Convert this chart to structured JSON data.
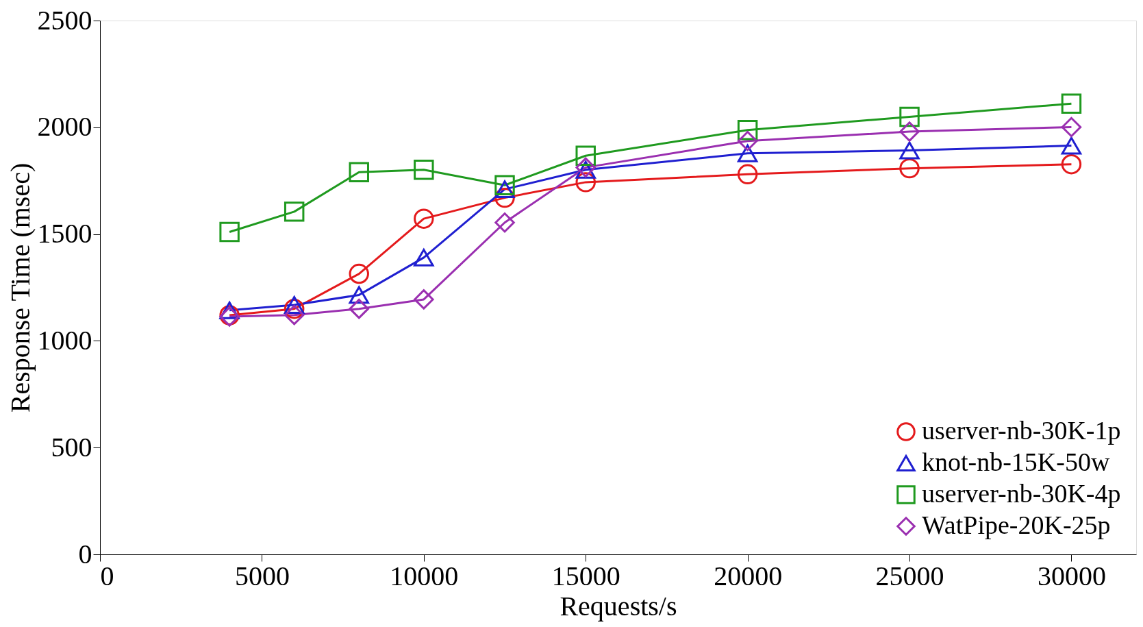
{
  "chart_data": {
    "type": "line",
    "xlabel": "Requests/s",
    "ylabel": "Response Time (msec)",
    "x": [
      4000,
      6000,
      8000,
      10000,
      12500,
      15000,
      20000,
      25000,
      30000
    ],
    "series": [
      {
        "name": "userver-nb-30K-1p",
        "color": "#e41a1c",
        "marker": "circle",
        "values": [
          1120,
          1150,
          1314,
          1572,
          1670,
          1743,
          1780,
          1808,
          1827
        ]
      },
      {
        "name": "knot-nb-15K-50w",
        "color": "#1f1fd0",
        "marker": "triangle",
        "values": [
          1143,
          1168,
          1215,
          1390,
          1710,
          1801,
          1878,
          1892,
          1914
        ]
      },
      {
        "name": "userver-nb-30K-4p",
        "color": "#1f9a1f",
        "marker": "square",
        "values": [
          1510,
          1605,
          1790,
          1801,
          1729,
          1867,
          1987,
          2049,
          2111
        ]
      },
      {
        "name": "WatPipe-20K-25p",
        "color": "#9a2fb0",
        "marker": "diamond",
        "values": [
          1114,
          1121,
          1150,
          1194,
          1554,
          1812,
          1936,
          1980,
          2001
        ]
      }
    ],
    "xlim": [
      0,
      32000
    ],
    "xticks": [
      0,
      5000,
      10000,
      15000,
      20000,
      25000,
      30000
    ],
    "ylim": [
      0,
      2500
    ],
    "yticks": [
      0,
      500,
      1000,
      1500,
      2000,
      2500
    ],
    "grid": false,
    "legend": "bottom right",
    "line_style": "solid"
  }
}
